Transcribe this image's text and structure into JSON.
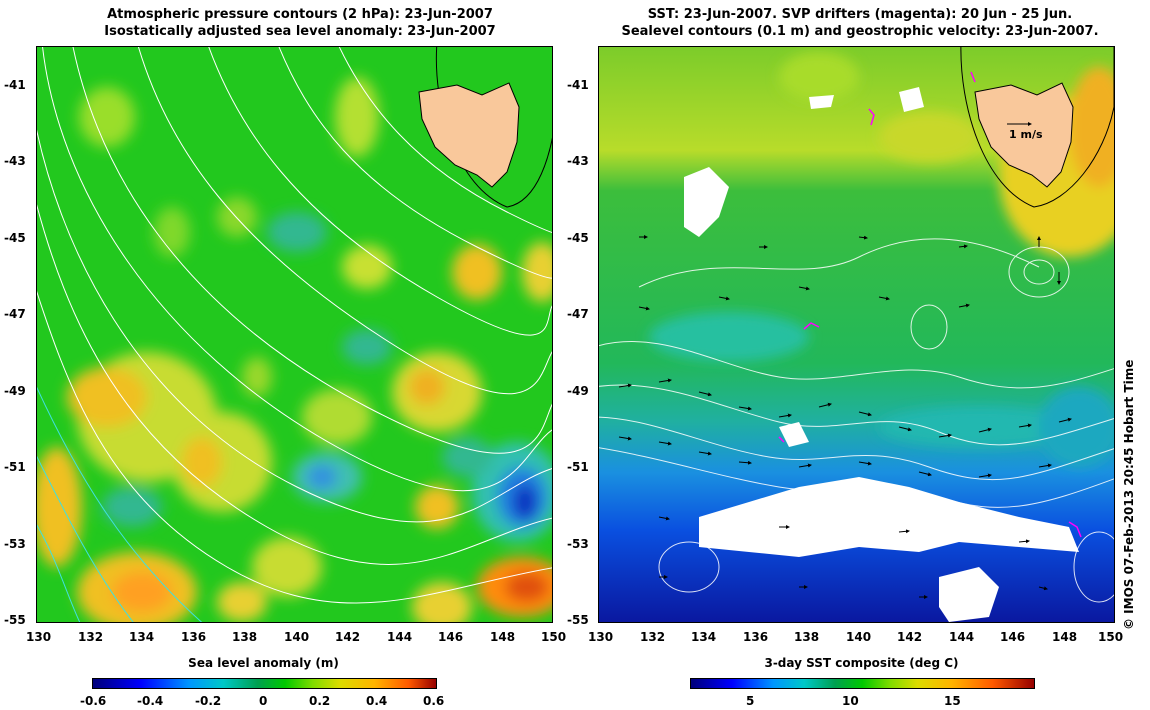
{
  "left_panel": {
    "title_line1": "Atmospheric pressure contours (2 hPa): 23-Jun-2007",
    "title_line2": "Isostatically adjusted sea level anomaly: 23-Jun-2007",
    "y_ticks": [
      "-41",
      "-43",
      "-45",
      "-47",
      "-49",
      "-51",
      "-53",
      "-55"
    ],
    "x_ticks": [
      "130",
      "132",
      "134",
      "136",
      "138",
      "140",
      "142",
      "144",
      "146",
      "148",
      "150"
    ],
    "colorbar_label": "Sea level anomaly (m)",
    "colorbar_ticks": [
      "-0.6",
      "-0.4",
      "-0.2",
      "0",
      "0.2",
      "0.4",
      "0.6"
    ]
  },
  "right_panel": {
    "title_line1": "SST: 23-Jun-2007. SVP drifters (magenta): 20 Jun - 25 Jun.",
    "title_line2": "Sealevel contours (0.1 m) and geostrophic velocity: 23-Jun-2007.",
    "y_ticks": [
      "-41",
      "-43",
      "-45",
      "-47",
      "-49",
      "-51",
      "-53",
      "-55"
    ],
    "x_ticks": [
      "130",
      "132",
      "134",
      "136",
      "138",
      "140",
      "142",
      "144",
      "146",
      "148",
      "150"
    ],
    "velocity_scale_label": "1 m/s",
    "colorbar_label": "3-day SST composite (deg C)",
    "colorbar_ticks": [
      "5",
      "10",
      "15"
    ]
  },
  "copyright": "© IMOS 07-Feb-2013 20:45 Hobart Time",
  "colors": {
    "land": "#f9c89b",
    "contour": "#ffffff",
    "arrow": "#000000",
    "drifter": "#ff00ff",
    "cloud_mask": "#ffffff"
  }
}
